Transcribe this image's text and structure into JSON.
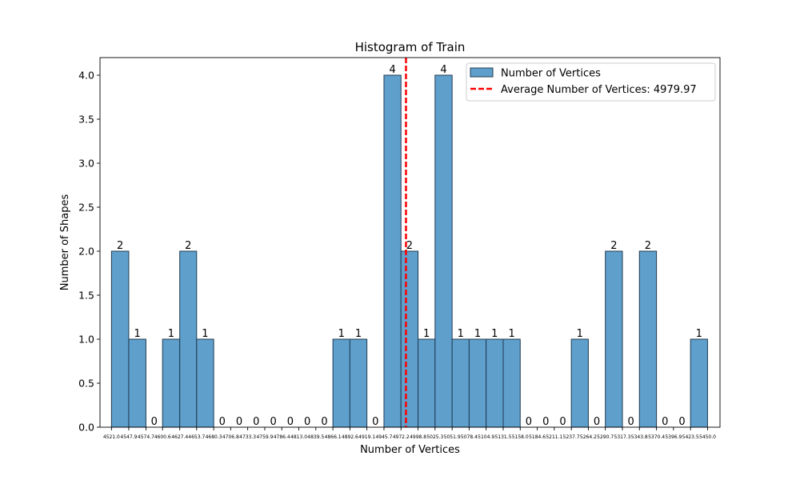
{
  "chart_data": {
    "type": "bar",
    "title": "Histogram of Train",
    "xlabel": "Number of Vertices",
    "ylabel": "Number of Shapes",
    "ylim": [
      0,
      4.2
    ],
    "yticks": [
      "0.0",
      "0.5",
      "1.0",
      "1.5",
      "2.0",
      "2.5",
      "3.0",
      "3.5",
      "4.0"
    ],
    "xlim": [
      4503.1,
      5469.4
    ],
    "bin_edges": [
      4521.0,
      4547.9,
      4574.7,
      4600.6,
      4627.4,
      4653.7,
      4680.3,
      4706.8,
      4733.3,
      4759.9,
      4786.4,
      4813.0,
      4839.5,
      4866.1,
      4892.6,
      4919.1,
      4945.7,
      4972.2,
      4998.8,
      5025.3,
      5051.9,
      5078.4,
      5104.9,
      5131.5,
      5158.0,
      5184.6,
      5211.1,
      5237.7,
      5264.2,
      5290.7,
      5317.3,
      5343.8,
      5370.4,
      5396.9,
      5423.5,
      5450.0
    ],
    "bin_edge_labels": [
      "4521.0",
      "4547.9",
      "4574.7",
      "4600.6",
      "4627.4",
      "4653.7",
      "4680.3",
      "4706.8",
      "4733.3",
      "4759.9",
      "4786.4",
      "4813.0",
      "4839.5",
      "4866.1",
      "4892.6",
      "4919.1",
      "4945.7",
      "4972.2",
      "4998.8",
      "5025.3",
      "5051.9",
      "5078.4",
      "5104.9",
      "5131.5",
      "5158.0",
      "5184.6",
      "5211.1",
      "5237.7",
      "5264.2",
      "5290.7",
      "5317.3",
      "5343.8",
      "5370.4",
      "5396.9",
      "5423.5",
      "5450.0"
    ],
    "values": [
      2,
      1,
      0,
      1,
      2,
      1,
      0,
      0,
      0,
      0,
      0,
      0,
      0,
      1,
      1,
      0,
      4,
      2,
      1,
      4,
      1,
      1,
      1,
      1,
      0,
      0,
      0,
      1,
      0,
      2,
      0,
      2,
      0,
      0,
      1
    ],
    "average_line": {
      "value": 4979.97,
      "label": "Average Number of Vertices: 4979.97",
      "color": "#ff0000"
    },
    "series": [
      {
        "name": "Number of Vertices",
        "color": "#5f9fcc",
        "edgecolor": "#1f3b52"
      }
    ],
    "legend_position": "upper right",
    "grid": false
  }
}
